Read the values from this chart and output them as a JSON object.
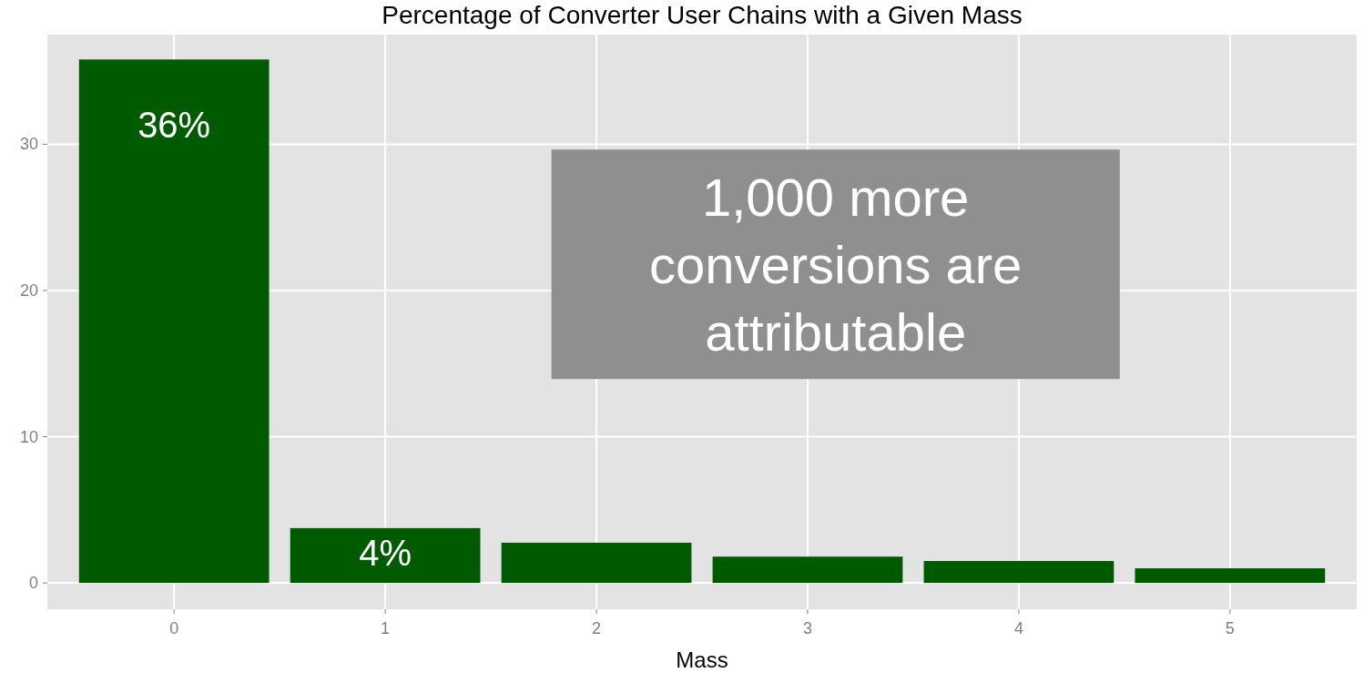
{
  "chart_data": {
    "type": "bar",
    "title": "Percentage of Converter User Chains with a Given Mass",
    "xlabel": "Mass",
    "categories": [
      "0",
      "1",
      "2",
      "3",
      "4",
      "5"
    ],
    "values": [
      35.8,
      3.75,
      2.75,
      1.8,
      1.5,
      1.0
    ],
    "value_labels": [
      "36%",
      "4%",
      null,
      null,
      null,
      null
    ],
    "color": "#005a00",
    "ylim": [
      -1.8,
      37.5
    ],
    "yticks": [
      0,
      10,
      20,
      30
    ],
    "grid": true,
    "annotations": [
      "1,000 more conversions are attributable"
    ]
  }
}
